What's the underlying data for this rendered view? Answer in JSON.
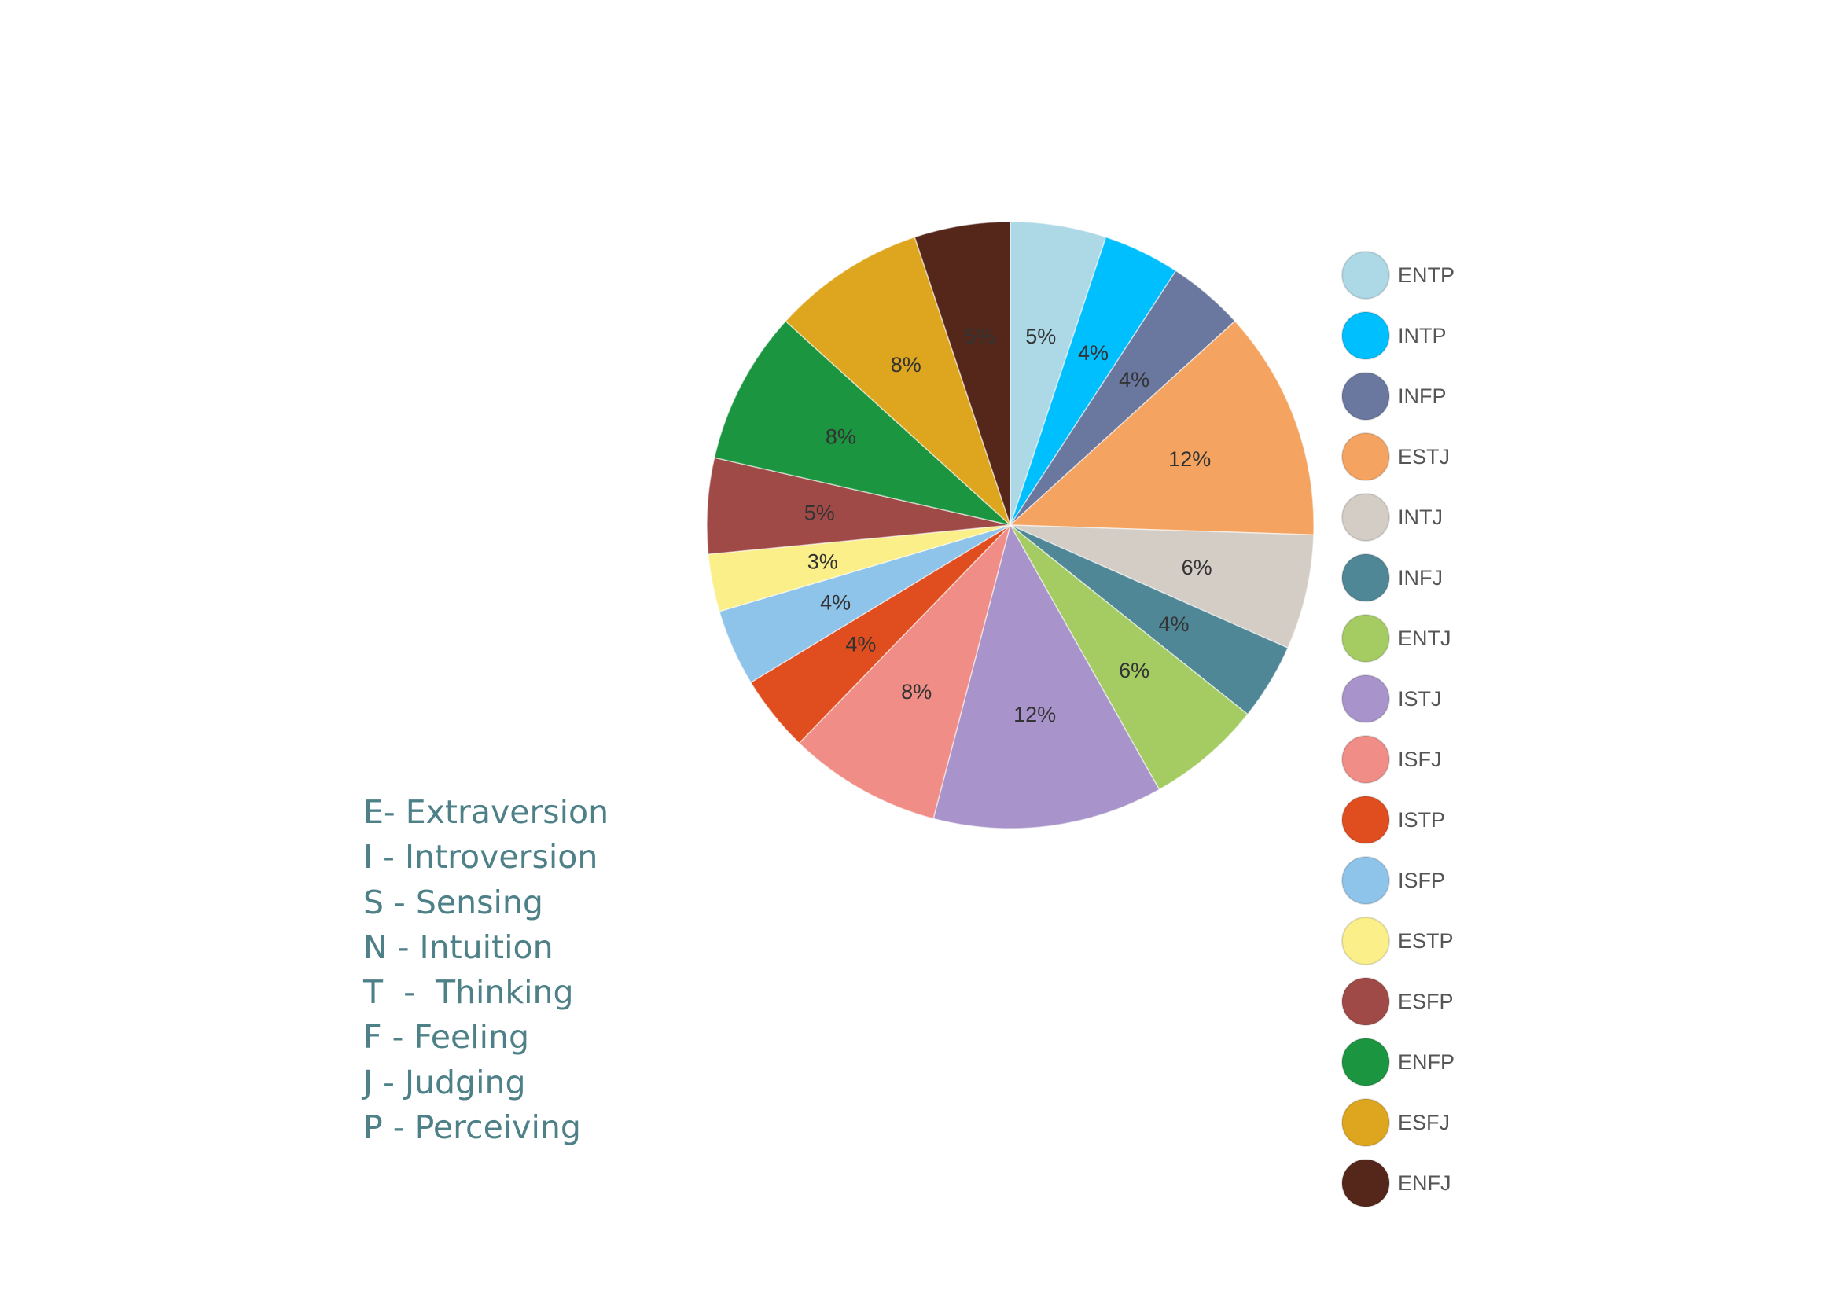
{
  "chart_data": {
    "type": "pie",
    "start": "top",
    "direction": "clockwise",
    "slices": [
      {
        "name": "ENTP",
        "value": 5,
        "label": "5%",
        "color": "#add8e6"
      },
      {
        "name": "INTP",
        "value": 4,
        "label": "4%",
        "color": "#00bfff"
      },
      {
        "name": "INFP",
        "value": 4,
        "label": "4%",
        "color": "#6a789f"
      },
      {
        "name": "ESTJ",
        "value": 12,
        "label": "12%",
        "color": "#f4a460"
      },
      {
        "name": "INTJ",
        "value": 6,
        "label": "6%",
        "color": "#d3cdc5"
      },
      {
        "name": "INFJ",
        "value": 4,
        "label": "4%",
        "color": "#4f8797"
      },
      {
        "name": "ENTJ",
        "value": 6,
        "label": "6%",
        "color": "#a4cc62"
      },
      {
        "name": "ISTJ",
        "value": 12,
        "label": "12%",
        "color": "#a893ca"
      },
      {
        "name": "ISFJ",
        "value": 8,
        "label": "8%",
        "color": "#f08d87"
      },
      {
        "name": "ISTP",
        "value": 4,
        "label": "4%",
        "color": "#e04e1f"
      },
      {
        "name": "ISFP",
        "value": 4,
        "label": "4%",
        "color": "#8ec3ea"
      },
      {
        "name": "ESTP",
        "value": 3,
        "label": "3%",
        "color": "#fbef8a"
      },
      {
        "name": "ESFP",
        "value": 5,
        "label": "5%",
        "color": "#a04a48"
      },
      {
        "name": "ENFP",
        "value": 8,
        "label": "8%",
        "color": "#1c9540"
      },
      {
        "name": "ESFJ",
        "value": 8,
        "label": "8%",
        "color": "#dea61e"
      },
      {
        "name": "ENFJ",
        "value": 5,
        "label": "5%",
        "color": "#55271b"
      }
    ],
    "legend": "right"
  },
  "key": [
    "E- Extraversion",
    "I - Introversion",
    "S - Sensing",
    "N - Intuition",
    "T  -  Thinking",
    "F - Feeling",
    "J - Judging",
    "P - Perceiving"
  ]
}
